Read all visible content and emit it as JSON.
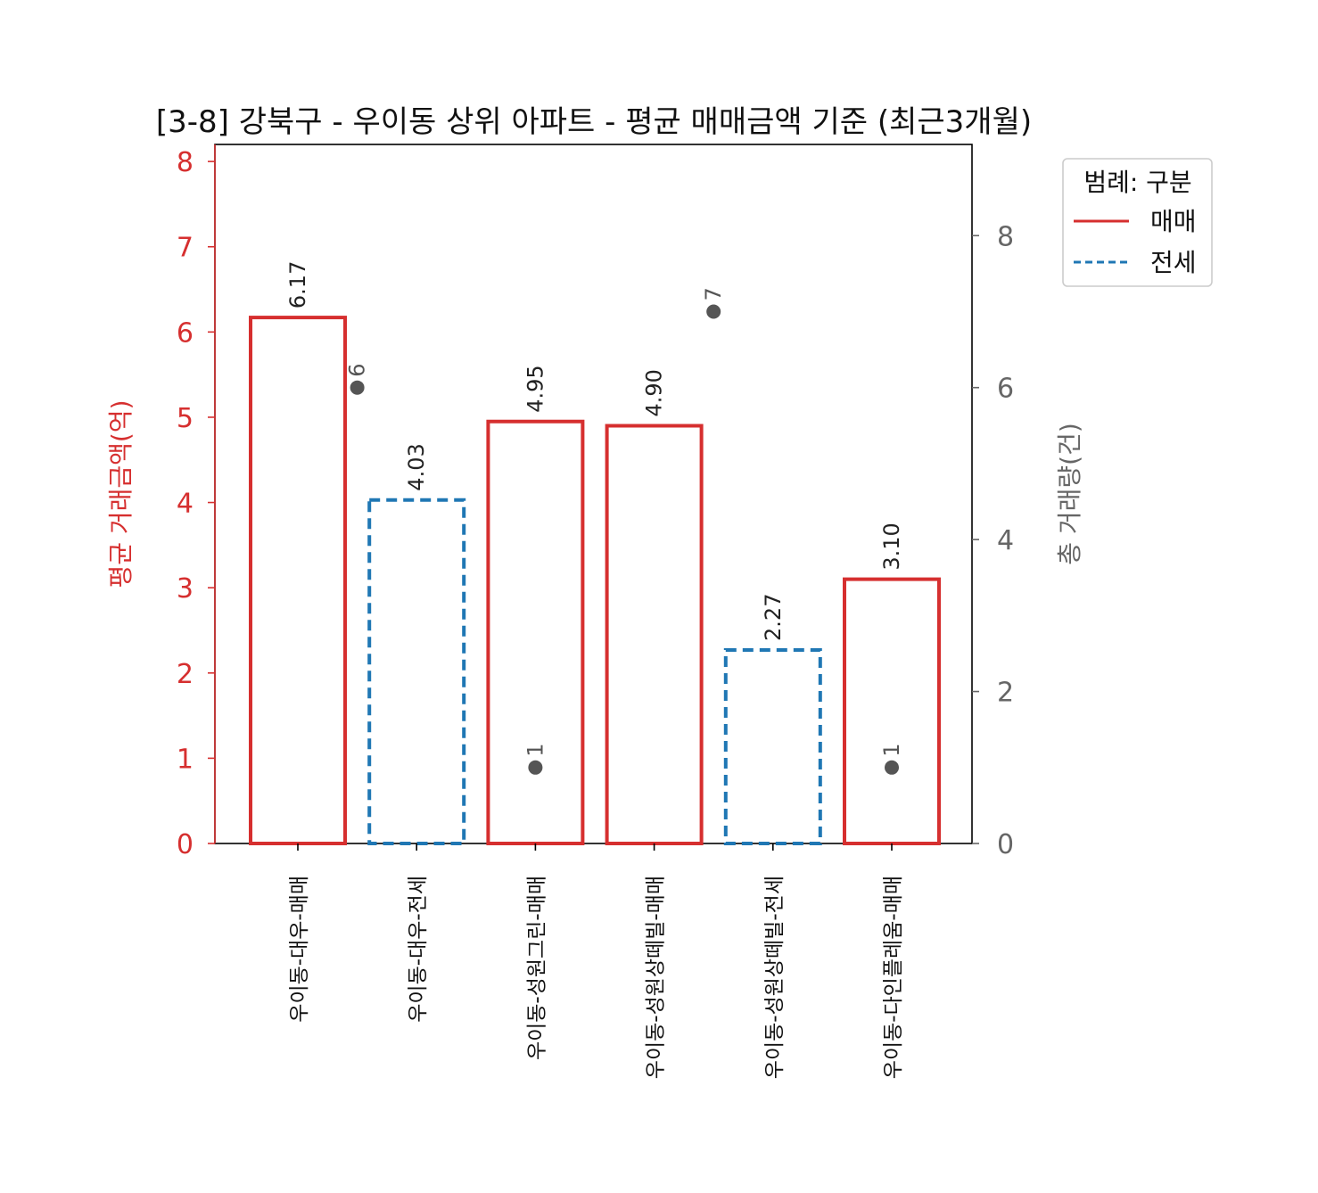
{
  "chart_data": {
    "type": "bar",
    "title": "[3-8] 강북구 - 우이동 상위 아파트 - 평균 매매금액 기준 (최근3개월)",
    "ylabel_left": "평균 거래금액(억)",
    "ylabel_right": "총 거래량(건)",
    "categories": [
      "우이동-대우-매매",
      "우이동-대우-전세",
      "우이동-성원그린-매매",
      "우이동-성원상떼빌-매매",
      "우이동-성원상떼빌-전세",
      "우이동-다인플레움-매매"
    ],
    "bar_types": [
      "매매",
      "전세",
      "매매",
      "매매",
      "전세",
      "매매"
    ],
    "values": [
      6.17,
      4.03,
      4.95,
      4.9,
      2.27,
      3.1
    ],
    "value_labels": [
      "6.17",
      "4.03",
      "4.95",
      "4.90",
      "2.27",
      "3.10"
    ],
    "volume_points": [
      {
        "x_position": 0.5,
        "value": 6,
        "label": "6"
      },
      {
        "x_position": 2,
        "value": 1,
        "label": "1"
      },
      {
        "x_position": 3.5,
        "value": 7,
        "label": "7"
      },
      {
        "x_position": 5,
        "value": 1,
        "label": "1"
      }
    ],
    "ylim_left": [
      0,
      8.2
    ],
    "ylim_right": [
      0,
      9.2
    ],
    "yticks_left": [
      0,
      1,
      2,
      3,
      4,
      5,
      6,
      7,
      8
    ],
    "yticks_right": [
      0,
      2,
      4,
      6,
      8
    ],
    "legend": {
      "title": "범례: 구분",
      "position": "outside-top-right",
      "entries": [
        {
          "label": "매매",
          "style": "solid"
        },
        {
          "label": "전세",
          "style": "dashed"
        }
      ]
    },
    "colors": {
      "매매": "#d62f2f",
      "전세": "#1f77b4",
      "left_axis": "#d62f2f",
      "right_axis": "#666666",
      "points": "#555555"
    },
    "grid": false
  }
}
